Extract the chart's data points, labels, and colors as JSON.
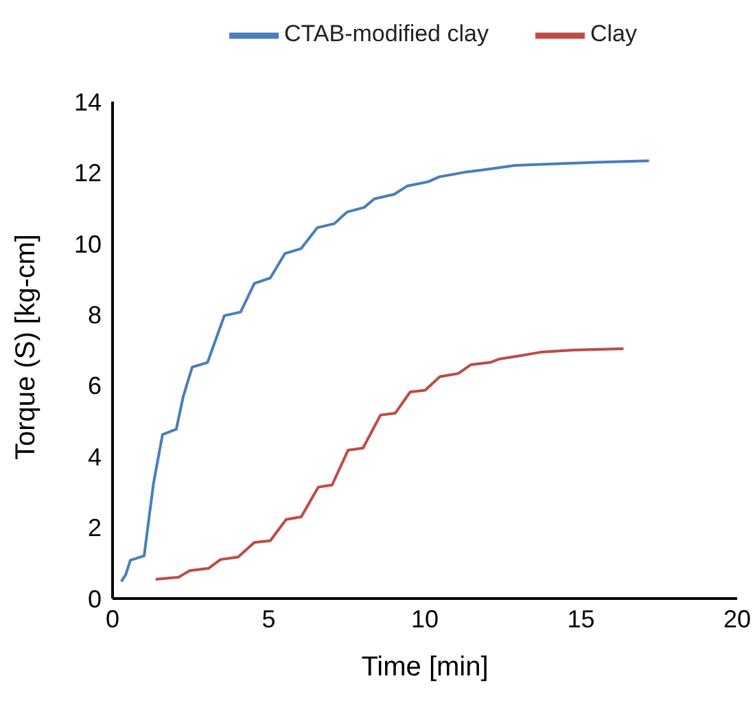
{
  "chart_data": {
    "type": "line",
    "xlabel": "Time [min]",
    "ylabel": "Torque (S) [kg-cm]",
    "xlim": [
      0,
      20
    ],
    "xticks": [
      0,
      5,
      10,
      15,
      20
    ],
    "ylim": [
      0,
      14
    ],
    "yticks": [
      0,
      2,
      4,
      6,
      8,
      10,
      12,
      14
    ],
    "grid": false,
    "legend": "top",
    "marker": "none",
    "line_style": "solid",
    "series": [
      {
        "name": "CTAB-modified clay",
        "color": "#4a7ebb",
        "x": [
          0.28,
          0.42,
          0.57,
          1.01,
          1.31,
          1.6,
          2.04,
          2.26,
          2.55,
          3.04,
          3.58,
          4.1,
          4.54,
          5.05,
          5.52,
          6.04,
          6.56,
          7.1,
          7.51,
          8.06,
          8.38,
          9.02,
          9.43,
          10.1,
          10.46,
          11.34,
          12.07,
          12.88,
          13.98,
          15.45,
          17.18
        ],
        "values": [
          0.48,
          0.67,
          1.08,
          1.2,
          3.24,
          4.62,
          4.77,
          5.68,
          6.52,
          6.65,
          7.97,
          8.07,
          8.88,
          9.03,
          9.72,
          9.86,
          10.45,
          10.56,
          10.89,
          11.02,
          11.26,
          11.39,
          11.62,
          11.74,
          11.88,
          12.02,
          12.1,
          12.2,
          12.24,
          12.29,
          12.33
        ]
      },
      {
        "name": "Clay",
        "color": "#be4b48",
        "x": [
          1.38,
          2.11,
          2.48,
          3.07,
          3.46,
          4.02,
          4.54,
          5.05,
          5.56,
          6.04,
          6.59,
          7.03,
          7.54,
          8.02,
          8.58,
          9.05,
          9.53,
          10.01,
          10.48,
          11.07,
          11.48,
          12.09,
          12.39,
          13.12,
          13.71,
          14.74,
          16.36
        ],
        "values": [
          0.54,
          0.6,
          0.79,
          0.85,
          1.1,
          1.17,
          1.58,
          1.63,
          2.23,
          2.3,
          3.14,
          3.2,
          4.18,
          4.24,
          5.17,
          5.22,
          5.82,
          5.87,
          6.25,
          6.34,
          6.59,
          6.65,
          6.75,
          6.85,
          6.94,
          7.0,
          7.04
        ]
      }
    ]
  }
}
